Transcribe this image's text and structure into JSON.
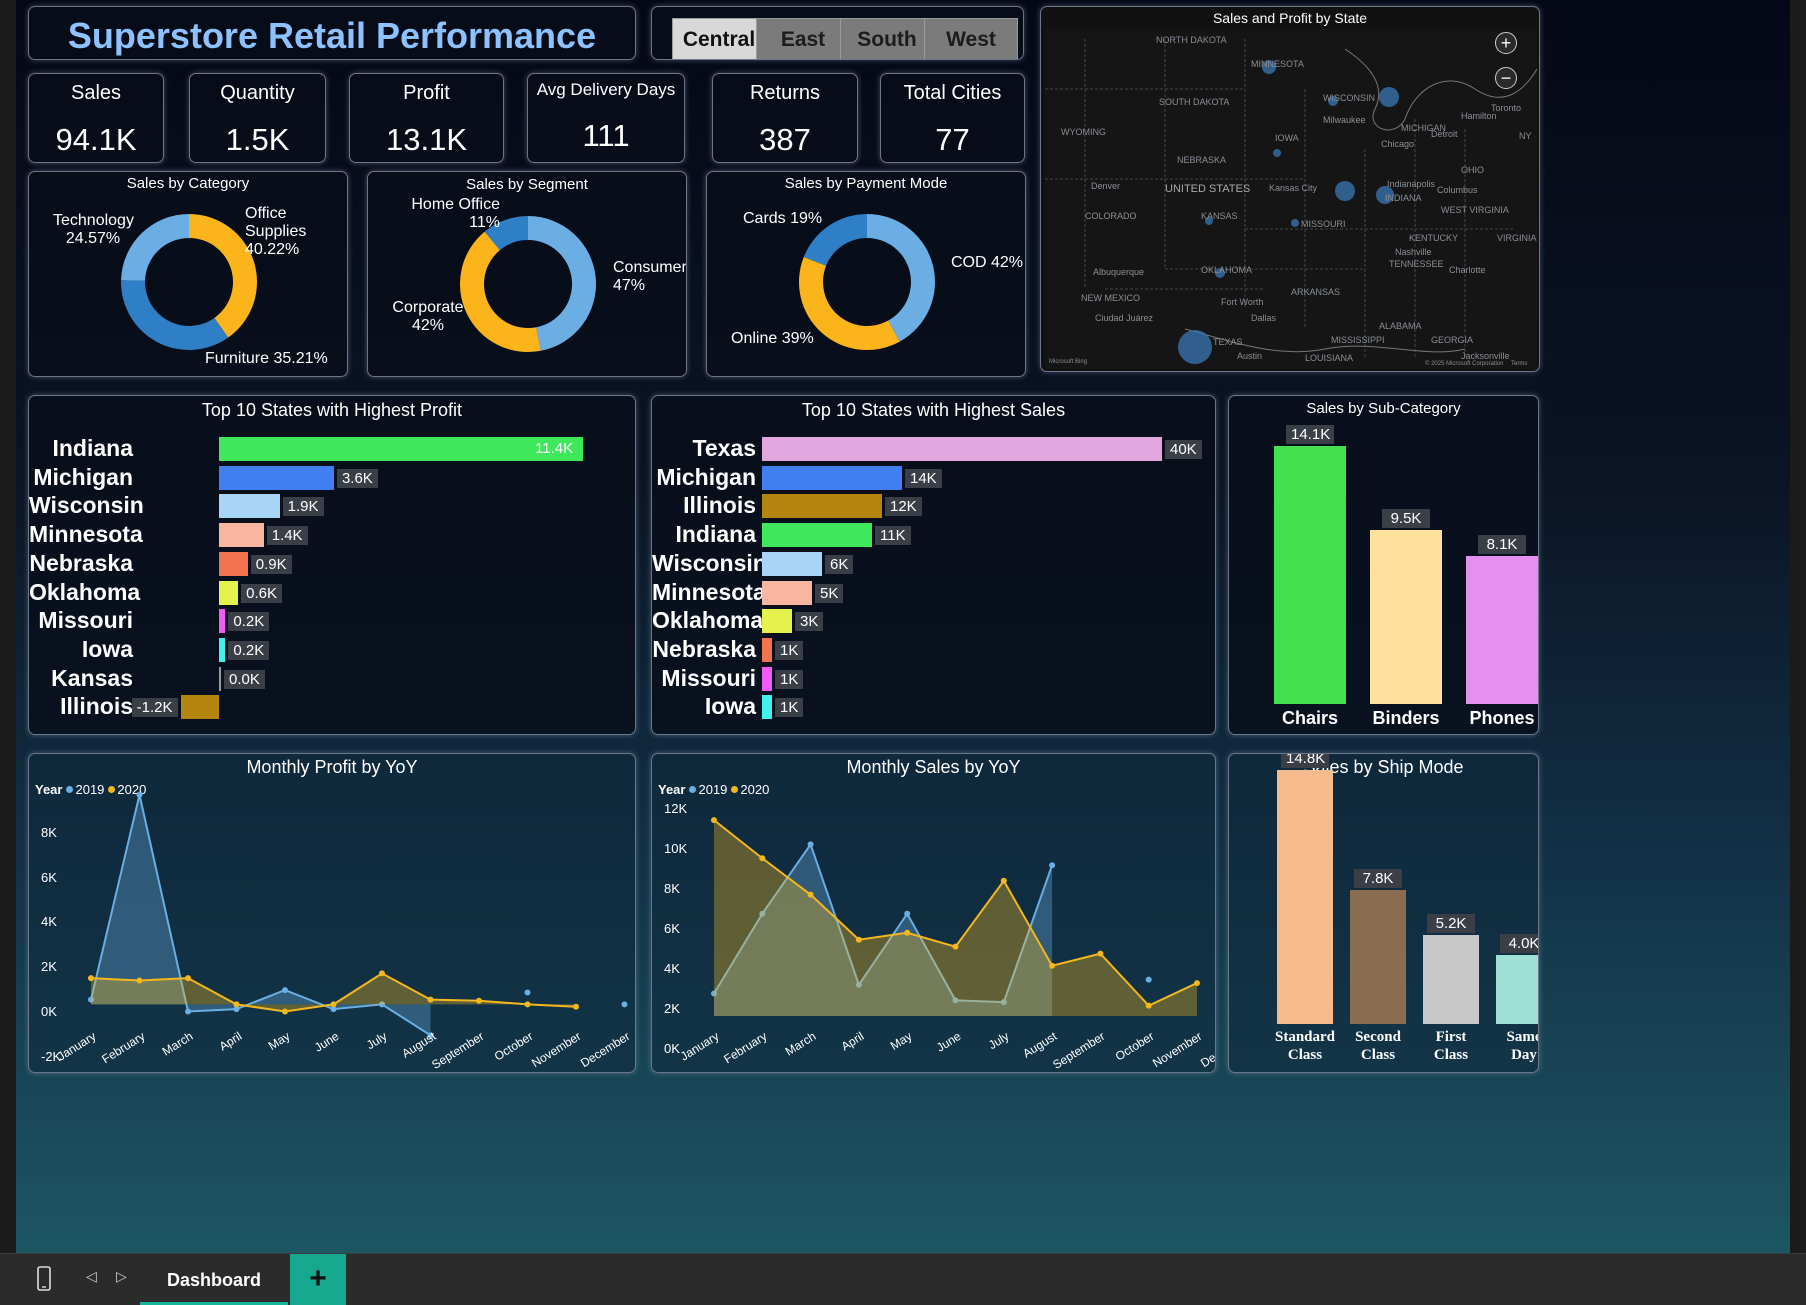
{
  "title": "Superstore Retail Performance",
  "region_slicer": [
    "Central",
    "East",
    "South",
    "West"
  ],
  "region_active": "Central",
  "kpis": [
    {
      "label": "Sales",
      "value": "94.1K"
    },
    {
      "label": "Quantity",
      "value": "1.5K"
    },
    {
      "label": "Profit",
      "value": "13.1K"
    },
    {
      "label": "Avg Delivery Days",
      "value": "111"
    },
    {
      "label": "Returns",
      "value": "387"
    },
    {
      "label": "Total Cities",
      "value": "77"
    }
  ],
  "category": {
    "title": "Sales by Category",
    "labels": {
      "tech_name": "Technology",
      "tech_pct": "24.57%",
      "office_name": "Office Supplies",
      "office_pct": "40.22%",
      "furn": "Furniture 35.21%"
    }
  },
  "segment": {
    "title": "Sales by Segment",
    "labels": {
      "home_name": "Home Office",
      "home_pct": "11%",
      "cons_name": "Consumer",
      "cons_pct": "47%",
      "corp_name": "Corporate",
      "corp_pct": "42%"
    }
  },
  "payment": {
    "title": "Sales by Payment Mode",
    "labels": {
      "cards": "Cards 19%",
      "cod": "COD 42%",
      "online": "Online 39%"
    }
  },
  "map": {
    "title": "Sales and Profit by State",
    "zoom_in": "+",
    "zoom_out": "−",
    "labels": {
      "north_dakota": "NORTH DAKOTA",
      "minnesota": "MINNESOTA",
      "south_dakota": "SOUTH DAKOTA",
      "wisconsin": "WISCONSIN",
      "michigan": "MICHIGAN",
      "wyoming": "WYOMING",
      "nebraska": "NEBRASKA",
      "iowa": "IOWA",
      "united_states": "UNITED STATES",
      "denver": "Denver",
      "colorado": "COLORADO",
      "kansas_city": "Kansas City",
      "kansas": "KANSAS",
      "missouri": "MISSOURI",
      "milwaukee": "Milwaukee",
      "chicago": "Chicago",
      "detroit": "Detroit",
      "toronto": "Toronto",
      "hamilton": "Hamilton",
      "indiana": "INDIANA",
      "ohio": "OHIO",
      "columbus": "Columbus",
      "indianapolis": "Indianapolis",
      "kentucky": "KENTUCKY",
      "nashville": "Nashville",
      "tennessee": "TENNESSEE",
      "west_virginia": "WEST VIRGINIA",
      "virginia": "VIRGINIA",
      "charlotte": "Charlotte",
      "oklahoma": "OKLAHOMA",
      "albuquerque": "Albuquerque",
      "new_mexico": "NEW MEXICO",
      "arkansas": "ARKANSAS",
      "fort_worth": "Fort Worth",
      "dallas": "Dallas",
      "ciudad_juarez": "Ciudad Juárez",
      "texas": "TEXAS",
      "austin": "Austin",
      "mississippi": "MISSISSIPPI",
      "alabama": "ALABAMA",
      "georgia": "GEORGIA",
      "louisiana": "LOUISIANA",
      "jacksonville": "Jacksonville",
      "ny": "NY",
      "attribution_left": "Microsoft Bing",
      "attribution_right": "© 2025 Microsoft Corporation",
      "terms": "Terms"
    }
  },
  "top_profit": {
    "title": "Top 10 States with Highest Profit",
    "states": [
      "Indiana",
      "Michigan",
      "Wisconsin",
      "Minnesota",
      "Nebraska",
      "Oklahoma",
      "Missouri",
      "Iowa",
      "Kansas",
      "Illinois"
    ],
    "labels": [
      "11.4K",
      "3.6K",
      "1.9K",
      "1.4K",
      "0.9K",
      "0.6K",
      "0.2K",
      "0.2K",
      "0.0K",
      "-1.2K"
    ]
  },
  "top_sales": {
    "title": "Top 10 States with Highest Sales",
    "states": [
      "Texas",
      "Michigan",
      "Illinois",
      "Indiana",
      "Wisconsin",
      "Minnesota",
      "Oklahoma",
      "Nebraska",
      "Missouri",
      "Iowa"
    ],
    "labels": [
      "40K",
      "14K",
      "12K",
      "11K",
      "6K",
      "5K",
      "3K",
      "1K",
      "1K",
      "1K"
    ]
  },
  "subcat": {
    "title": "Sales by Sub-Category",
    "categories": [
      "Chairs",
      "Binders",
      "Phones"
    ],
    "labels": [
      "14.1K",
      "9.5K",
      "8.1K"
    ]
  },
  "monthly_profit": {
    "title": "Monthly Profit by YoY"
  },
  "monthly_sales": {
    "title": "Monthly Sales by YoY"
  },
  "legend": {
    "title": "Year",
    "s2019": "2019",
    "s2020": "2020"
  },
  "months": [
    "January",
    "February",
    "March",
    "April",
    "May",
    "June",
    "July",
    "August",
    "September",
    "October",
    "November",
    "December"
  ],
  "ship_mode": {
    "title": "Sales by Ship Mode",
    "categories": [
      [
        "Standard",
        "Class"
      ],
      [
        "Second",
        "Class"
      ],
      [
        "First",
        "Class"
      ],
      [
        "Same",
        "Day"
      ]
    ],
    "labels": [
      "14.8K",
      "7.8K",
      "5.2K",
      "4.0K"
    ]
  },
  "colors": {
    "series2019": "#6aaee3",
    "series2020": "#f4b81e",
    "donut_light": "#6aaee3",
    "donut_mid": "#2f7fc6",
    "donut_yellow": "#fbb41a"
  },
  "taskbar": {
    "tab": "Dashboard",
    "add": "+"
  },
  "chart_data": [
    {
      "type": "pie",
      "title": "Sales by Category",
      "categories": [
        "Office Supplies",
        "Furniture",
        "Technology"
      ],
      "values": [
        40.22,
        35.21,
        24.57
      ],
      "colors": [
        "#fbb41a",
        "#2f7fc6",
        "#6aaee3"
      ]
    },
    {
      "type": "pie",
      "title": "Sales by Segment",
      "categories": [
        "Consumer",
        "Corporate",
        "Home Office"
      ],
      "values": [
        47,
        42,
        11
      ],
      "colors": [
        "#6aaee3",
        "#fbb41a",
        "#2f7fc6"
      ]
    },
    {
      "type": "pie",
      "title": "Sales by Payment Mode",
      "categories": [
        "COD",
        "Online",
        "Cards"
      ],
      "values": [
        42,
        39,
        19
      ],
      "colors": [
        "#6aaee3",
        "#fbb41a",
        "#2f7fc6"
      ]
    },
    {
      "type": "bar",
      "title": "Top 10 States with Highest Profit",
      "categories": [
        "Indiana",
        "Michigan",
        "Wisconsin",
        "Minnesota",
        "Nebraska",
        "Oklahoma",
        "Missouri",
        "Iowa",
        "Kansas",
        "Illinois"
      ],
      "values": [
        11400,
        3600,
        1900,
        1400,
        900,
        600,
        200,
        200,
        0,
        -1200
      ],
      "colors": [
        "#3fe85a",
        "#3f7ff2",
        "#a8d4f7",
        "#f8b59f",
        "#f2744f",
        "#e5f24e",
        "#f25cf5",
        "#3ff2ee",
        "#9a9a9a",
        "#b5860f"
      ]
    },
    {
      "type": "bar",
      "title": "Top 10 States with Highest Sales",
      "categories": [
        "Texas",
        "Michigan",
        "Illinois",
        "Indiana",
        "Wisconsin",
        "Minnesota",
        "Oklahoma",
        "Nebraska",
        "Missouri",
        "Iowa"
      ],
      "values": [
        40000,
        14000,
        12000,
        11000,
        6000,
        5000,
        3000,
        1000,
        1000,
        1000
      ],
      "colors": [
        "#e3a7e0",
        "#3f7ff2",
        "#b5860f",
        "#3fe85a",
        "#a8d4f7",
        "#f8b59f",
        "#e5f24e",
        "#f2744f",
        "#f25cf5",
        "#3ff2ee"
      ]
    },
    {
      "type": "bar",
      "title": "Sales by Sub-Category",
      "categories": [
        "Chairs",
        "Binders",
        "Phones"
      ],
      "values": [
        14100,
        9500,
        8100
      ],
      "colors": [
        "#44e04f",
        "#fde19d",
        "#e58ff0"
      ]
    },
    {
      "type": "area",
      "title": "Monthly Profit by YoY",
      "x": [
        "January",
        "February",
        "March",
        "April",
        "May",
        "June",
        "July",
        "August",
        "September",
        "October",
        "November",
        "December"
      ],
      "ylim": [
        -2000,
        9000
      ],
      "yticks": [
        "8K",
        "6K",
        "4K",
        "2K",
        "0K",
        "-2K"
      ],
      "series": [
        {
          "name": "2019",
          "values": [
            200,
            8800,
            -300,
            -200,
            600,
            -200,
            0,
            -1300,
            null,
            500,
            null,
            0
          ]
        },
        {
          "name": "2020",
          "values": [
            1100,
            1000,
            1100,
            0,
            -300,
            0,
            1300,
            200,
            150,
            0,
            -100,
            null
          ]
        }
      ]
    },
    {
      "type": "area",
      "title": "Monthly Sales by YoY",
      "x": [
        "January",
        "February",
        "March",
        "April",
        "May",
        "June",
        "July",
        "August",
        "September",
        "October",
        "November",
        "December"
      ],
      "ylim": [
        0,
        12000
      ],
      "yticks": [
        "12K",
        "10K",
        "8K",
        "6K",
        "4K",
        "2K",
        "0K"
      ],
      "series": [
        {
          "name": "2019",
          "values": [
            1300,
            5900,
            9900,
            1800,
            5900,
            900,
            800,
            8700,
            null,
            2100,
            null,
            200
          ]
        },
        {
          "name": "2020",
          "values": [
            11300,
            9100,
            7000,
            4400,
            4800,
            4000,
            7800,
            2900,
            3600,
            600,
            1900,
            null
          ]
        }
      ]
    },
    {
      "type": "bar",
      "title": "Sales by Ship Mode",
      "categories": [
        "Standard Class",
        "Second Class",
        "First Class",
        "Same Day"
      ],
      "values": [
        14800,
        7800,
        5200,
        4000
      ],
      "colors": [
        "#f6bb8c",
        "#8a6c50",
        "#c8c8c8",
        "#9fe0d6"
      ]
    }
  ]
}
